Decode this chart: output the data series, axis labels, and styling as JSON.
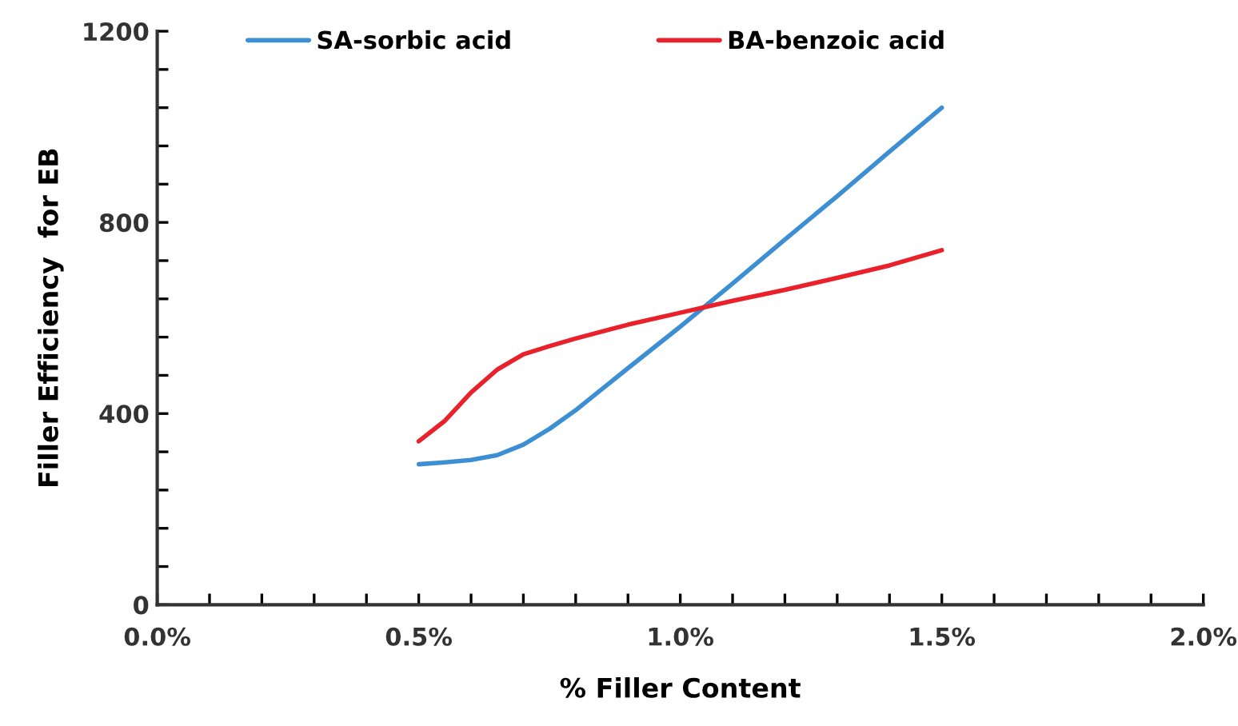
{
  "chart_data": {
    "type": "line",
    "xlabel": "% Filler Content",
    "ylabel": "Filler Efficiency  for EB",
    "xlim": [
      0,
      2.0
    ],
    "ylim": [
      0,
      1200
    ],
    "xticks": [
      {
        "value": 0,
        "label": "0.0%"
      },
      {
        "value": 0.5,
        "label": "0.5%"
      },
      {
        "value": 1.0,
        "label": "1.0%"
      },
      {
        "value": 1.5,
        "label": "1.5%"
      },
      {
        "value": 2.0,
        "label": "2.0%"
      }
    ],
    "yticks": [
      0,
      400,
      800,
      1200
    ],
    "grid": false,
    "legend": "top",
    "marker": "none",
    "line_style": "solid",
    "series": [
      {
        "name": "SA-sorbic acid",
        "color": "#3d8fd4",
        "x": [
          0.5,
          0.55,
          0.6,
          0.65,
          0.7,
          0.75,
          0.8,
          0.9,
          1.0,
          1.1,
          1.2,
          1.3,
          1.4,
          1.5
        ],
        "values": [
          294,
          298,
          303,
          313,
          335,
          368,
          407,
          495,
          582,
          672,
          764,
          855,
          948,
          1040
        ]
      },
      {
        "name": "BA-benzoic acid",
        "color": "#e8212b",
        "x": [
          0.5,
          0.55,
          0.6,
          0.65,
          0.7,
          0.75,
          0.8,
          0.9,
          1.0,
          1.1,
          1.2,
          1.3,
          1.4,
          1.5
        ],
        "values": [
          342,
          385,
          444,
          492,
          524,
          541,
          557,
          586,
          611,
          636,
          659,
          684,
          710,
          742
        ]
      }
    ]
  }
}
